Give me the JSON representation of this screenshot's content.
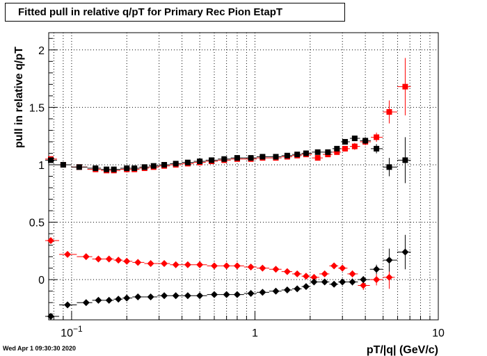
{
  "datestamp": "Wed Apr  1 09:30:30 2020",
  "chart_data": {
    "type": "scatter",
    "title": "Fitted pull in relative q/pT for Primary Rec Pion EtapT",
    "xlabel": "pT/|q| (GeV/c)",
    "ylabel": "pull in relative q/pT",
    "x_scale": "log",
    "xlim": [
      0.075,
      10
    ],
    "ylim": [
      -0.35,
      2.15
    ],
    "grid": true,
    "x_ticks": [
      {
        "value": 0.1,
        "label": "10",
        "sup": "−1"
      },
      {
        "value": 1,
        "label": "1"
      },
      {
        "value": 10,
        "label": "10"
      }
    ],
    "y_ticks": [
      0,
      0.5,
      1,
      1.5,
      2
    ],
    "y_tick_labels": [
      "0",
      "0.5",
      "1",
      "1.5",
      "2"
    ],
    "series": [
      {
        "color": "#ff0000",
        "marker": "square",
        "points": [
          [
            0.077,
            1.05
          ],
          [
            0.09,
            1.0
          ],
          [
            0.11,
            0.98
          ],
          [
            0.135,
            0.96
          ],
          [
            0.155,
            0.95
          ],
          [
            0.17,
            0.95
          ],
          [
            0.2,
            0.96
          ],
          [
            0.22,
            0.96
          ],
          [
            0.25,
            0.97
          ],
          [
            0.28,
            0.98
          ],
          [
            0.32,
            0.99
          ],
          [
            0.37,
            1.0
          ],
          [
            0.43,
            1.01
          ],
          [
            0.5,
            1.02
          ],
          [
            0.58,
            1.03
          ],
          [
            0.68,
            1.04
          ],
          [
            0.8,
            1.05
          ],
          [
            0.95,
            1.05
          ],
          [
            1.1,
            1.06
          ],
          [
            1.3,
            1.06
          ],
          [
            1.5,
            1.07
          ],
          [
            1.7,
            1.08
          ],
          [
            1.9,
            1.09
          ],
          [
            2.2,
            1.06
          ],
          [
            2.5,
            1.09
          ],
          [
            2.8,
            1.11
          ],
          [
            3.1,
            1.14
          ],
          [
            3.5,
            1.16
          ],
          [
            4.0,
            1.2
          ],
          [
            4.6,
            1.24
          ],
          [
            5.4,
            1.46
          ],
          [
            6.6,
            1.68
          ]
        ],
        "y_errors": [
          0.02,
          0.01,
          0.01,
          0.01,
          0.01,
          0.01,
          0.01,
          0.01,
          0.01,
          0.01,
          0.01,
          0.01,
          0.01,
          0.01,
          0.01,
          0.01,
          0.01,
          0.01,
          0.01,
          0.01,
          0.01,
          0.01,
          0.01,
          0.02,
          0.02,
          0.02,
          0.02,
          0.03,
          0.03,
          0.04,
          0.1,
          0.25
        ]
      },
      {
        "color": "#000000",
        "marker": "square",
        "points": [
          [
            0.077,
            1.04
          ],
          [
            0.09,
            1.0
          ],
          [
            0.11,
            0.98
          ],
          [
            0.135,
            0.97
          ],
          [
            0.155,
            0.96
          ],
          [
            0.17,
            0.96
          ],
          [
            0.2,
            0.97
          ],
          [
            0.22,
            0.97
          ],
          [
            0.25,
            0.98
          ],
          [
            0.28,
            0.99
          ],
          [
            0.32,
            1.0
          ],
          [
            0.37,
            1.01
          ],
          [
            0.43,
            1.02
          ],
          [
            0.5,
            1.03
          ],
          [
            0.58,
            1.04
          ],
          [
            0.68,
            1.05
          ],
          [
            0.8,
            1.06
          ],
          [
            0.95,
            1.06
          ],
          [
            1.1,
            1.07
          ],
          [
            1.3,
            1.07
          ],
          [
            1.5,
            1.08
          ],
          [
            1.7,
            1.09
          ],
          [
            1.9,
            1.1
          ],
          [
            2.2,
            1.11
          ],
          [
            2.5,
            1.11
          ],
          [
            2.8,
            1.14
          ],
          [
            3.1,
            1.2
          ],
          [
            3.5,
            1.23
          ],
          [
            4.0,
            1.21
          ],
          [
            4.6,
            1.14
          ],
          [
            5.4,
            0.98
          ],
          [
            6.6,
            1.04
          ]
        ],
        "y_errors": [
          0.02,
          0.01,
          0.01,
          0.01,
          0.01,
          0.01,
          0.01,
          0.01,
          0.01,
          0.01,
          0.01,
          0.01,
          0.01,
          0.01,
          0.01,
          0.01,
          0.01,
          0.01,
          0.01,
          0.01,
          0.01,
          0.01,
          0.01,
          0.02,
          0.02,
          0.02,
          0.02,
          0.02,
          0.03,
          0.04,
          0.08,
          0.2
        ]
      },
      {
        "color": "#ff0000",
        "marker": "diamond",
        "points": [
          [
            0.077,
            0.34
          ],
          [
            0.095,
            0.22
          ],
          [
            0.12,
            0.2
          ],
          [
            0.14,
            0.18
          ],
          [
            0.16,
            0.18
          ],
          [
            0.18,
            0.17
          ],
          [
            0.2,
            0.16
          ],
          [
            0.23,
            0.15
          ],
          [
            0.27,
            0.14
          ],
          [
            0.32,
            0.14
          ],
          [
            0.37,
            0.13
          ],
          [
            0.43,
            0.13
          ],
          [
            0.5,
            0.13
          ],
          [
            0.6,
            0.12
          ],
          [
            0.7,
            0.12
          ],
          [
            0.8,
            0.12
          ],
          [
            0.95,
            0.11
          ],
          [
            1.1,
            0.1
          ],
          [
            1.3,
            0.09
          ],
          [
            1.5,
            0.07
          ],
          [
            1.7,
            0.05
          ],
          [
            1.9,
            0.03
          ],
          [
            2.1,
            0.02
          ],
          [
            2.4,
            0.05
          ],
          [
            2.7,
            0.12
          ],
          [
            3.0,
            0.1
          ],
          [
            3.4,
            0.05
          ],
          [
            3.9,
            -0.05
          ],
          [
            4.6,
            0.0
          ],
          [
            5.4,
            0.02
          ]
        ],
        "y_errors": [
          0.02,
          0.01,
          0.01,
          0.01,
          0.01,
          0.01,
          0.01,
          0.01,
          0.01,
          0.01,
          0.01,
          0.01,
          0.01,
          0.01,
          0.01,
          0.01,
          0.01,
          0.01,
          0.01,
          0.01,
          0.01,
          0.01,
          0.01,
          0.02,
          0.02,
          0.02,
          0.03,
          0.04,
          0.05,
          0.1
        ]
      },
      {
        "color": "#000000",
        "marker": "diamond",
        "points": [
          [
            0.077,
            -0.32
          ],
          [
            0.095,
            -0.22
          ],
          [
            0.12,
            -0.2
          ],
          [
            0.14,
            -0.18
          ],
          [
            0.16,
            -0.18
          ],
          [
            0.18,
            -0.17
          ],
          [
            0.2,
            -0.16
          ],
          [
            0.23,
            -0.15
          ],
          [
            0.27,
            -0.15
          ],
          [
            0.32,
            -0.14
          ],
          [
            0.37,
            -0.14
          ],
          [
            0.43,
            -0.14
          ],
          [
            0.5,
            -0.14
          ],
          [
            0.6,
            -0.13
          ],
          [
            0.7,
            -0.13
          ],
          [
            0.8,
            -0.13
          ],
          [
            0.95,
            -0.12
          ],
          [
            1.1,
            -0.11
          ],
          [
            1.3,
            -0.1
          ],
          [
            1.5,
            -0.09
          ],
          [
            1.7,
            -0.08
          ],
          [
            1.9,
            -0.06
          ],
          [
            2.1,
            -0.02
          ],
          [
            2.4,
            -0.02
          ],
          [
            2.7,
            -0.04
          ],
          [
            3.0,
            -0.02
          ],
          [
            3.4,
            -0.02
          ],
          [
            3.9,
            0.0
          ],
          [
            4.6,
            0.09
          ],
          [
            5.4,
            0.17
          ],
          [
            6.6,
            0.24
          ]
        ],
        "y_errors": [
          0.02,
          0.01,
          0.01,
          0.01,
          0.01,
          0.01,
          0.01,
          0.01,
          0.01,
          0.01,
          0.01,
          0.01,
          0.01,
          0.01,
          0.01,
          0.01,
          0.01,
          0.01,
          0.01,
          0.01,
          0.01,
          0.01,
          0.01,
          0.02,
          0.02,
          0.02,
          0.03,
          0.03,
          0.04,
          0.1,
          0.15
        ]
      }
    ]
  }
}
